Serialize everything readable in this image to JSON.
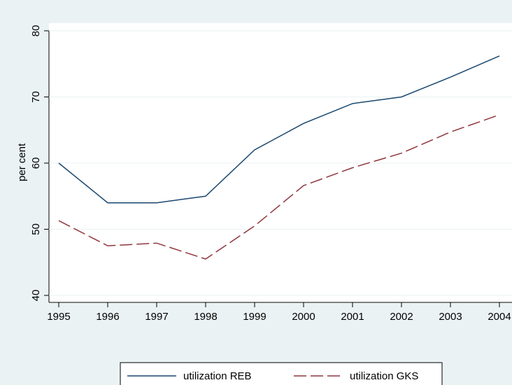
{
  "chart_data": {
    "type": "line",
    "y_label": "per cent",
    "x": [
      1995,
      1996,
      1997,
      1998,
      1999,
      2000,
      2001,
      2002,
      2003,
      2004
    ],
    "series": [
      {
        "name": "utilization REB",
        "color": "#1a476f",
        "dash": "solid",
        "values": [
          60,
          54,
          54,
          55,
          62,
          66,
          69,
          70,
          73,
          76.2
        ]
      },
      {
        "name": "utilization GKS",
        "color": "#90353b",
        "dash": "dashed",
        "values": [
          51.3,
          47.5,
          47.9,
          45.5,
          50.5,
          56.6,
          59.3,
          61.5,
          64.7,
          67.3
        ]
      }
    ],
    "xlim": [
      1995,
      2004
    ],
    "xticks": [
      1995,
      1996,
      1997,
      1998,
      1999,
      2000,
      2001,
      2002,
      2003,
      2004
    ],
    "ylim": [
      40,
      80
    ],
    "yticks": [
      40,
      50,
      60,
      70,
      80
    ],
    "grid": true
  }
}
